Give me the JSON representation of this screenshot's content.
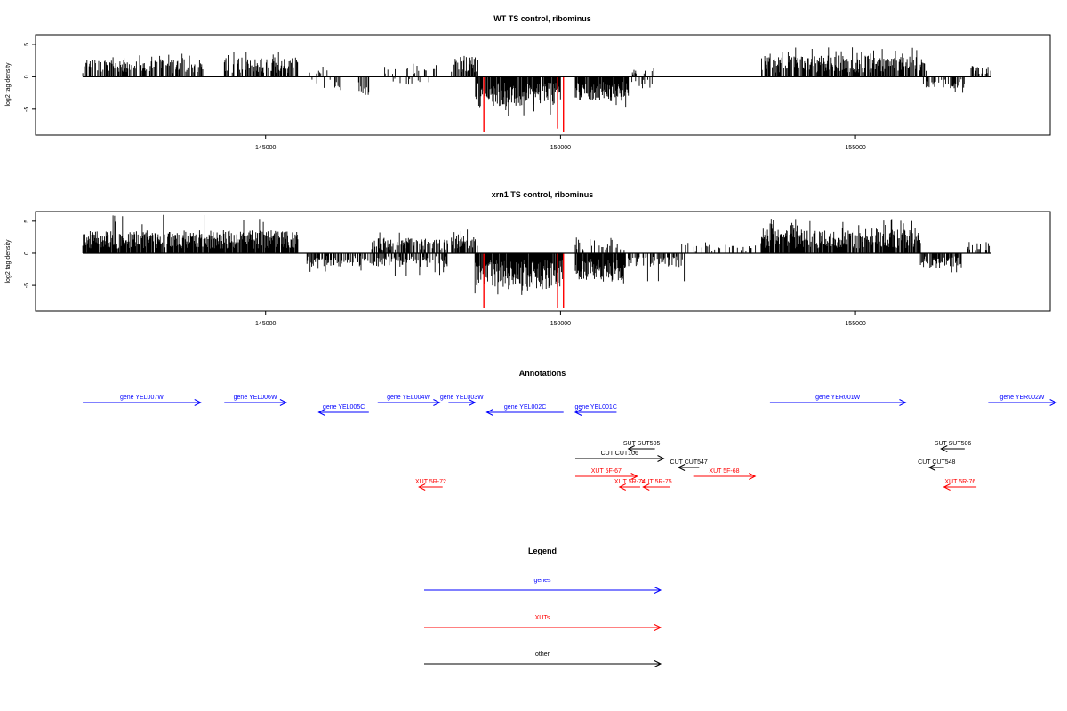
{
  "colors": {
    "axis": "#000000",
    "bars": "#000000",
    "highlight": "#ff0000",
    "genes": "#0000ff",
    "xuts": "#ff0000",
    "other": "#000000"
  },
  "chart_data": [
    {
      "type": "bar",
      "title": "WT TS control, ribominus",
      "xlabel": "",
      "ylabel": "log2 tag density",
      "xlim": [
        141100,
        158300
      ],
      "ylim": [
        -9,
        6.5
      ],
      "xticks": [
        "145000",
        "150000",
        "155000"
      ],
      "yticks": [
        "5",
        "0",
        "-5"
      ],
      "highlight_lines": [
        {
          "x": 148700,
          "value": -8.5
        },
        {
          "x": 149950,
          "value": -8.0
        },
        {
          "x": 150050,
          "value": -8.5
        }
      ]
    },
    {
      "type": "bar",
      "title": "xrn1 TS control, ribominus",
      "xlabel": "",
      "ylabel": "log2 tag density",
      "xlim": [
        141100,
        158300
      ],
      "ylim": [
        -9,
        6.5
      ],
      "xticks": [
        "145000",
        "150000",
        "155000"
      ],
      "yticks": [
        "5",
        "0",
        "-5"
      ],
      "highlight_lines": [
        {
          "x": 148700,
          "value": -8.5
        },
        {
          "x": 149950,
          "value": -8.5
        },
        {
          "x": 150050,
          "value": -8.5
        }
      ]
    }
  ],
  "annotations": {
    "title": "Annotations",
    "features": [
      {
        "label": "gene YEL007W",
        "class": "genes",
        "start": 141900,
        "end": 143900,
        "dir": "right",
        "row": 0
      },
      {
        "label": "gene YEL006W",
        "class": "genes",
        "start": 144300,
        "end": 145350,
        "dir": "right",
        "row": 0
      },
      {
        "label": "gene YEL005C",
        "class": "genes",
        "start": 145900,
        "end": 146750,
        "dir": "left",
        "row": 1
      },
      {
        "label": "gene YEL004W",
        "class": "genes",
        "start": 146900,
        "end": 147950,
        "dir": "right",
        "row": 0
      },
      {
        "label": "gene YEL003W",
        "class": "genes",
        "start": 148100,
        "end": 148550,
        "dir": "right",
        "row": 0
      },
      {
        "label": "gene YEL002C",
        "class": "genes",
        "start": 148750,
        "end": 150050,
        "dir": "left",
        "row": 1
      },
      {
        "label": "gene YEL001C",
        "class": "genes",
        "start": 150250,
        "end": 150950,
        "dir": "left",
        "row": 1
      },
      {
        "label": "gene YER001W",
        "class": "genes",
        "start": 153550,
        "end": 155850,
        "dir": "right",
        "row": 0
      },
      {
        "label": "gene YER002W",
        "class": "genes",
        "start": 157250,
        "end": 158400,
        "dir": "right",
        "row": 0
      },
      {
        "label": "SUT SUT505",
        "class": "other",
        "start": 151150,
        "end": 151600,
        "dir": "left",
        "row": 2
      },
      {
        "label": "CUT CUT106",
        "class": "other",
        "start": 150250,
        "end": 151750,
        "dir": "right",
        "row": 3
      },
      {
        "label": "CUT CUT547",
        "class": "other",
        "start": 152000,
        "end": 152350,
        "dir": "left",
        "row": 4
      },
      {
        "label": "SUT SUT506",
        "class": "other",
        "start": 156450,
        "end": 156850,
        "dir": "left",
        "row": 2
      },
      {
        "label": "CUT CUT548",
        "class": "other",
        "start": 156250,
        "end": 156500,
        "dir": "left",
        "row": 4
      },
      {
        "label": "XUT 5F-67",
        "class": "xuts",
        "start": 150250,
        "end": 151300,
        "dir": "right",
        "row": 5
      },
      {
        "label": "XUT 5R-72",
        "class": "xuts",
        "start": 147600,
        "end": 148000,
        "dir": "left",
        "row": 6
      },
      {
        "label": "XUT 5R-74",
        "class": "xuts",
        "start": 151000,
        "end": 151350,
        "dir": "left",
        "row": 6
      },
      {
        "label": "XUT 5R-75",
        "class": "xuts",
        "start": 151400,
        "end": 151850,
        "dir": "left",
        "row": 6
      },
      {
        "label": "XUT 5F-68",
        "class": "xuts",
        "start": 152250,
        "end": 153300,
        "dir": "right",
        "row": 5
      },
      {
        "label": "XUT 5R-76",
        "class": "xuts",
        "start": 156500,
        "end": 157050,
        "dir": "left",
        "row": 6
      }
    ]
  },
  "legend": {
    "title": "Legend",
    "items": [
      {
        "label": "genes",
        "class": "genes"
      },
      {
        "label": "XUTs",
        "class": "xuts"
      },
      {
        "label": "other",
        "class": "other"
      }
    ]
  }
}
